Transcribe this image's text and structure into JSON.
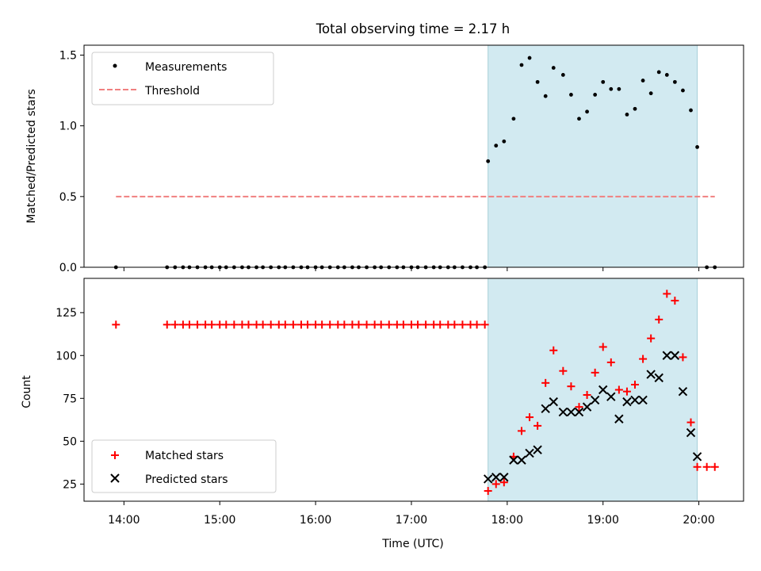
{
  "figure_title": "Total observing time = 2.17 h",
  "chart_data": [
    {
      "type": "scatter",
      "panel": "top",
      "ylabel": "Matched/Predicted stars",
      "ylim": [
        0,
        1.57
      ],
      "y_ticks": [
        0,
        0.5,
        1,
        1.5
      ],
      "y_tick_labels": [
        "0.0",
        "0.5",
        "1.0",
        "1.5"
      ],
      "xlim": [
        "13:35",
        "20:28"
      ],
      "shaded_region": {
        "x_start": "17:48",
        "x_end": "19:59",
        "color": "#add8e6"
      },
      "legend_position": "upper left",
      "series": [
        {
          "name": "Measurements",
          "marker": "dot",
          "color": "#000000",
          "points": [
            [
              "13:55",
              0
            ],
            [
              "14:27",
              0
            ],
            [
              "14:32",
              0
            ],
            [
              "14:37",
              0
            ],
            [
              "14:41",
              0
            ],
            [
              "14:46",
              0
            ],
            [
              "14:51",
              0
            ],
            [
              "14:55",
              0
            ],
            [
              "15:00",
              0
            ],
            [
              "15:04",
              0
            ],
            [
              "15:09",
              0
            ],
            [
              "15:14",
              0
            ],
            [
              "15:18",
              0
            ],
            [
              "15:23",
              0
            ],
            [
              "15:27",
              0
            ],
            [
              "15:32",
              0
            ],
            [
              "15:37",
              0
            ],
            [
              "15:41",
              0
            ],
            [
              "15:46",
              0
            ],
            [
              "15:51",
              0
            ],
            [
              "15:55",
              0
            ],
            [
              "16:00",
              0
            ],
            [
              "16:04",
              0
            ],
            [
              "16:09",
              0
            ],
            [
              "16:14",
              0
            ],
            [
              "16:18",
              0
            ],
            [
              "16:23",
              0
            ],
            [
              "16:27",
              0
            ],
            [
              "16:32",
              0
            ],
            [
              "16:37",
              0
            ],
            [
              "16:41",
              0
            ],
            [
              "16:46",
              0
            ],
            [
              "16:51",
              0
            ],
            [
              "16:55",
              0
            ],
            [
              "17:00",
              0
            ],
            [
              "17:04",
              0
            ],
            [
              "17:09",
              0
            ],
            [
              "17:14",
              0
            ],
            [
              "17:18",
              0
            ],
            [
              "17:23",
              0
            ],
            [
              "17:27",
              0
            ],
            [
              "17:32",
              0
            ],
            [
              "17:37",
              0
            ],
            [
              "17:41",
              0
            ],
            [
              "17:46",
              0
            ],
            [
              "17:48",
              0.75
            ],
            [
              "17:53",
              0.86
            ],
            [
              "17:58",
              0.89
            ],
            [
              "18:04",
              1.05
            ],
            [
              "18:09",
              1.43
            ],
            [
              "18:14",
              1.48
            ],
            [
              "18:19",
              1.31
            ],
            [
              "18:24",
              1.21
            ],
            [
              "18:29",
              1.41
            ],
            [
              "18:35",
              1.36
            ],
            [
              "18:40",
              1.22
            ],
            [
              "18:45",
              1.05
            ],
            [
              "18:50",
              1.1
            ],
            [
              "18:55",
              1.22
            ],
            [
              "19:00",
              1.31
            ],
            [
              "19:05",
              1.26
            ],
            [
              "19:10",
              1.26
            ],
            [
              "19:15",
              1.08
            ],
            [
              "19:20",
              1.12
            ],
            [
              "19:25",
              1.32
            ],
            [
              "19:30",
              1.23
            ],
            [
              "19:35",
              1.38
            ],
            [
              "19:40",
              1.36
            ],
            [
              "19:45",
              1.31
            ],
            [
              "19:50",
              1.25
            ],
            [
              "19:55",
              1.11
            ],
            [
              "19:59",
              0.85
            ],
            [
              "20:05",
              0
            ],
            [
              "20:10",
              0
            ]
          ]
        },
        {
          "name": "Threshold",
          "line": "dashed",
          "color": "#f08080",
          "points": [
            [
              "13:55",
              0.5
            ],
            [
              "20:10",
              0.5
            ]
          ]
        }
      ]
    },
    {
      "type": "scatter",
      "panel": "bottom",
      "xlabel": "Time (UTC)",
      "ylabel": "Count",
      "ylim": [
        15,
        145
      ],
      "y_ticks": [
        25,
        50,
        75,
        100,
        125
      ],
      "x_tick_labels": [
        "14:00",
        "15:00",
        "16:00",
        "17:00",
        "18:00",
        "19:00",
        "20:00"
      ],
      "xlim": [
        "13:35",
        "20:28"
      ],
      "shaded_region": {
        "x_start": "17:48",
        "x_end": "19:59",
        "color": "#add8e6"
      },
      "legend_position": "lower left",
      "series": [
        {
          "name": "Matched stars",
          "marker": "plus",
          "color": "#ff0000",
          "points": [
            [
              "13:55",
              118
            ],
            [
              "14:27",
              118
            ],
            [
              "14:32",
              118
            ],
            [
              "14:37",
              118
            ],
            [
              "14:41",
              118
            ],
            [
              "14:46",
              118
            ],
            [
              "14:51",
              118
            ],
            [
              "14:55",
              118
            ],
            [
              "15:00",
              118
            ],
            [
              "15:04",
              118
            ],
            [
              "15:09",
              118
            ],
            [
              "15:14",
              118
            ],
            [
              "15:18",
              118
            ],
            [
              "15:23",
              118
            ],
            [
              "15:27",
              118
            ],
            [
              "15:32",
              118
            ],
            [
              "15:37",
              118
            ],
            [
              "15:41",
              118
            ],
            [
              "15:46",
              118
            ],
            [
              "15:51",
              118
            ],
            [
              "15:55",
              118
            ],
            [
              "16:00",
              118
            ],
            [
              "16:04",
              118
            ],
            [
              "16:09",
              118
            ],
            [
              "16:14",
              118
            ],
            [
              "16:18",
              118
            ],
            [
              "16:23",
              118
            ],
            [
              "16:27",
              118
            ],
            [
              "16:32",
              118
            ],
            [
              "16:37",
              118
            ],
            [
              "16:41",
              118
            ],
            [
              "16:46",
              118
            ],
            [
              "16:51",
              118
            ],
            [
              "16:55",
              118
            ],
            [
              "17:00",
              118
            ],
            [
              "17:04",
              118
            ],
            [
              "17:09",
              118
            ],
            [
              "17:14",
              118
            ],
            [
              "17:18",
              118
            ],
            [
              "17:23",
              118
            ],
            [
              "17:27",
              118
            ],
            [
              "17:32",
              118
            ],
            [
              "17:37",
              118
            ],
            [
              "17:41",
              118
            ],
            [
              "17:46",
              118
            ],
            [
              "17:48",
              21
            ],
            [
              "17:53",
              25
            ],
            [
              "17:58",
              26
            ],
            [
              "18:04",
              41
            ],
            [
              "18:09",
              56
            ],
            [
              "18:14",
              64
            ],
            [
              "18:19",
              59
            ],
            [
              "18:24",
              84
            ],
            [
              "18:29",
              103
            ],
            [
              "18:35",
              91
            ],
            [
              "18:40",
              82
            ],
            [
              "18:45",
              70
            ],
            [
              "18:50",
              77
            ],
            [
              "18:55",
              90
            ],
            [
              "19:00",
              105
            ],
            [
              "19:05",
              96
            ],
            [
              "19:10",
              80
            ],
            [
              "19:15",
              79
            ],
            [
              "19:20",
              83
            ],
            [
              "19:25",
              98
            ],
            [
              "19:30",
              110
            ],
            [
              "19:35",
              121
            ],
            [
              "19:40",
              136
            ],
            [
              "19:45",
              132
            ],
            [
              "19:50",
              99
            ],
            [
              "19:55",
              61
            ],
            [
              "19:59",
              35
            ],
            [
              "20:05",
              35
            ],
            [
              "20:10",
              35
            ]
          ]
        },
        {
          "name": "Predicted stars",
          "marker": "x",
          "color": "#000000",
          "points": [
            [
              "17:48",
              28
            ],
            [
              "17:53",
              29
            ],
            [
              "17:58",
              29
            ],
            [
              "18:04",
              39
            ],
            [
              "18:09",
              39
            ],
            [
              "18:14",
              43
            ],
            [
              "18:19",
              45
            ],
            [
              "18:24",
              69
            ],
            [
              "18:29",
              73
            ],
            [
              "18:35",
              67
            ],
            [
              "18:40",
              67
            ],
            [
              "18:45",
              67
            ],
            [
              "18:50",
              70
            ],
            [
              "18:55",
              74
            ],
            [
              "19:00",
              80
            ],
            [
              "19:05",
              76
            ],
            [
              "19:10",
              63
            ],
            [
              "19:15",
              73
            ],
            [
              "19:20",
              74
            ],
            [
              "19:25",
              74
            ],
            [
              "19:30",
              89
            ],
            [
              "19:35",
              87
            ],
            [
              "19:40",
              100
            ],
            [
              "19:45",
              100
            ],
            [
              "19:50",
              79
            ],
            [
              "19:55",
              55
            ],
            [
              "19:59",
              41
            ]
          ]
        }
      ]
    }
  ]
}
